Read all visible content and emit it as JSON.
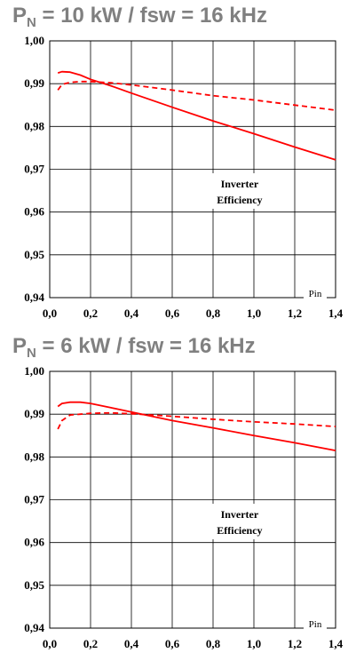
{
  "colors": {
    "curve": "#ff0000",
    "grid": "#000000",
    "title": "#808080",
    "background": "#ffffff"
  },
  "chart_data": [
    {
      "type": "line",
      "title_parts": {
        "main": "P",
        "sub": "N",
        "rest": " = 10 kW / fsw = 16 kHz"
      },
      "xlabel": "Pin",
      "ylabel": "",
      "xlim": [
        0,
        1.4
      ],
      "ylim": [
        0.94,
        1.0
      ],
      "x_ticks": [
        "0,0",
        "0,2",
        "0,4",
        "0,6",
        "0,8",
        "1,0",
        "1,2",
        "1,4"
      ],
      "y_ticks": [
        "0,94",
        "0,95",
        "0,96",
        "0,97",
        "0,98",
        "0,99",
        "1,00"
      ],
      "grid": true,
      "annotation": [
        "Inverter",
        "Efficiency"
      ],
      "series": [
        {
          "style": "solid",
          "color": "#ff0000",
          "x": [
            0.04,
            0.06,
            0.1,
            0.15,
            0.2,
            0.3,
            0.4,
            0.6,
            0.8,
            1.0,
            1.2,
            1.4
          ],
          "y": [
            0.9925,
            0.9928,
            0.9927,
            0.992,
            0.991,
            0.9895,
            0.9878,
            0.9845,
            0.9813,
            0.9783,
            0.9752,
            0.9722
          ]
        },
        {
          "style": "dashed",
          "color": "#ff0000",
          "x": [
            0.04,
            0.06,
            0.1,
            0.15,
            0.2,
            0.3,
            0.4,
            0.6,
            0.8,
            1.0,
            1.2,
            1.4
          ],
          "y": [
            0.9885,
            0.9898,
            0.9903,
            0.9905,
            0.9905,
            0.9902,
            0.9897,
            0.9885,
            0.9872,
            0.9862,
            0.985,
            0.9838
          ]
        }
      ]
    },
    {
      "type": "line",
      "title_parts": {
        "main": "P",
        "sub": "N",
        "rest": " = 6 kW / fsw = 16 kHz"
      },
      "xlabel": "Pin",
      "ylabel": "",
      "xlim": [
        0,
        1.4
      ],
      "ylim": [
        0.94,
        1.0
      ],
      "x_ticks": [
        "0,0",
        "0,2",
        "0,4",
        "0,6",
        "0,8",
        "1,0",
        "1,2",
        "1,4"
      ],
      "y_ticks": [
        "0,94",
        "0,95",
        "0,96",
        "0,97",
        "0,98",
        "0,99",
        "1,00"
      ],
      "grid": true,
      "annotation": [
        "Inverter",
        "Efficiency"
      ],
      "series": [
        {
          "style": "solid",
          "color": "#ff0000",
          "x": [
            0.04,
            0.06,
            0.1,
            0.15,
            0.2,
            0.3,
            0.4,
            0.6,
            0.8,
            1.0,
            1.2,
            1.4
          ],
          "y": [
            0.9918,
            0.9925,
            0.9928,
            0.9928,
            0.9925,
            0.9915,
            0.9905,
            0.9885,
            0.9868,
            0.985,
            0.9833,
            0.9815
          ]
        },
        {
          "style": "dashed",
          "color": "#ff0000",
          "x": [
            0.04,
            0.06,
            0.1,
            0.15,
            0.2,
            0.3,
            0.4,
            0.6,
            0.8,
            1.0,
            1.2,
            1.4
          ],
          "y": [
            0.9865,
            0.9885,
            0.9898,
            0.99,
            0.9902,
            0.9903,
            0.9901,
            0.9895,
            0.9888,
            0.9882,
            0.9877,
            0.9871
          ]
        }
      ]
    }
  ]
}
